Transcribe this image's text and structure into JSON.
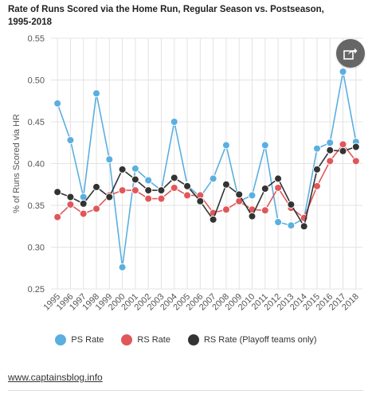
{
  "title": "Rate of Runs Scored via the Home Run, Regular Season vs. Postseason, 1995-2018",
  "source_link": "www.captainsblog.info",
  "share_icon": "share-icon",
  "chart_data": {
    "type": "line",
    "title": "Rate of Runs Scored via the Home Run, Regular Season vs. Postseason, 1995-2018",
    "xlabel": "",
    "ylabel": "% of Runs Scored via HR",
    "ylim": [
      0.25,
      0.55
    ],
    "yticks": [
      "0.25",
      "0.30",
      "0.35",
      "0.40",
      "0.45",
      "0.50",
      "0.55"
    ],
    "grid": true,
    "legend_position": "bottom",
    "x": [
      "1995",
      "1996",
      "1997",
      "1998",
      "1999",
      "2000",
      "2001",
      "2002",
      "2003",
      "2004",
      "2005",
      "2006",
      "2007",
      "2008",
      "2009",
      "2010",
      "2011",
      "2012",
      "2013",
      "2014",
      "2015",
      "2016",
      "2017",
      "2018"
    ],
    "series": [
      {
        "name": "PS Rate",
        "color": "#5aafe0",
        "values": [
          0.472,
          0.428,
          0.36,
          0.484,
          0.405,
          0.276,
          0.394,
          0.38,
          0.368,
          0.45,
          0.374,
          0.36,
          0.382,
          0.422,
          0.355,
          0.362,
          0.422,
          0.33,
          0.326,
          0.334,
          0.418,
          0.425,
          0.51,
          0.426
        ]
      },
      {
        "name": "RS Rate",
        "color": "#e0575a",
        "values": [
          0.336,
          0.351,
          0.34,
          0.346,
          0.362,
          0.368,
          0.368,
          0.358,
          0.358,
          0.371,
          0.362,
          0.362,
          0.341,
          0.345,
          0.355,
          0.345,
          0.344,
          0.371,
          0.347,
          0.335,
          0.373,
          0.403,
          0.423,
          0.403
        ]
      },
      {
        "name": "RS Rate (Playoff teams only)",
        "color": "#333333",
        "values": [
          0.366,
          0.36,
          0.352,
          0.372,
          0.36,
          0.393,
          0.381,
          0.368,
          0.368,
          0.383,
          0.373,
          0.355,
          0.333,
          0.375,
          0.363,
          0.337,
          0.37,
          0.382,
          0.351,
          0.325,
          0.393,
          0.416,
          0.415,
          0.42
        ]
      }
    ]
  }
}
